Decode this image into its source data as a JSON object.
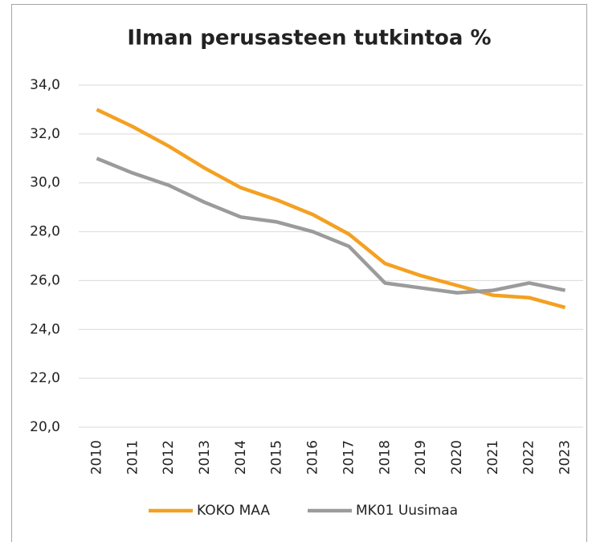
{
  "chart_data": {
    "type": "line",
    "title": "Ilman perusasteen tutkintoa %",
    "categories": [
      "2010",
      "2011",
      "2012",
      "2013",
      "2014",
      "2015",
      "2016",
      "2017",
      "2018",
      "2019",
      "2020",
      "2021",
      "2022",
      "2023"
    ],
    "series": [
      {
        "name": "KOKO MAA",
        "color": "#f4a021",
        "values": [
          33.0,
          32.3,
          31.5,
          30.6,
          29.8,
          29.3,
          28.7,
          27.9,
          26.7,
          26.2,
          25.8,
          25.4,
          25.3,
          24.9
        ]
      },
      {
        "name": "MK01 Uusimaa",
        "color": "#9b9b9b",
        "values": [
          31.0,
          30.4,
          29.9,
          29.2,
          28.6,
          28.4,
          28.0,
          27.4,
          25.9,
          25.7,
          25.5,
          25.6,
          25.9,
          25.6
        ]
      }
    ],
    "ylim": [
      20,
      34
    ],
    "yticks": [
      {
        "value": 20,
        "label": "20,0"
      },
      {
        "value": 22,
        "label": "22,0"
      },
      {
        "value": 24,
        "label": "24,0"
      },
      {
        "value": 26,
        "label": "26,0"
      },
      {
        "value": 28,
        "label": "28,0"
      },
      {
        "value": 30,
        "label": "30,0"
      },
      {
        "value": 32,
        "label": "32,0"
      },
      {
        "value": 34,
        "label": "34,0"
      }
    ],
    "grid": true,
    "legend": "bottom"
  }
}
